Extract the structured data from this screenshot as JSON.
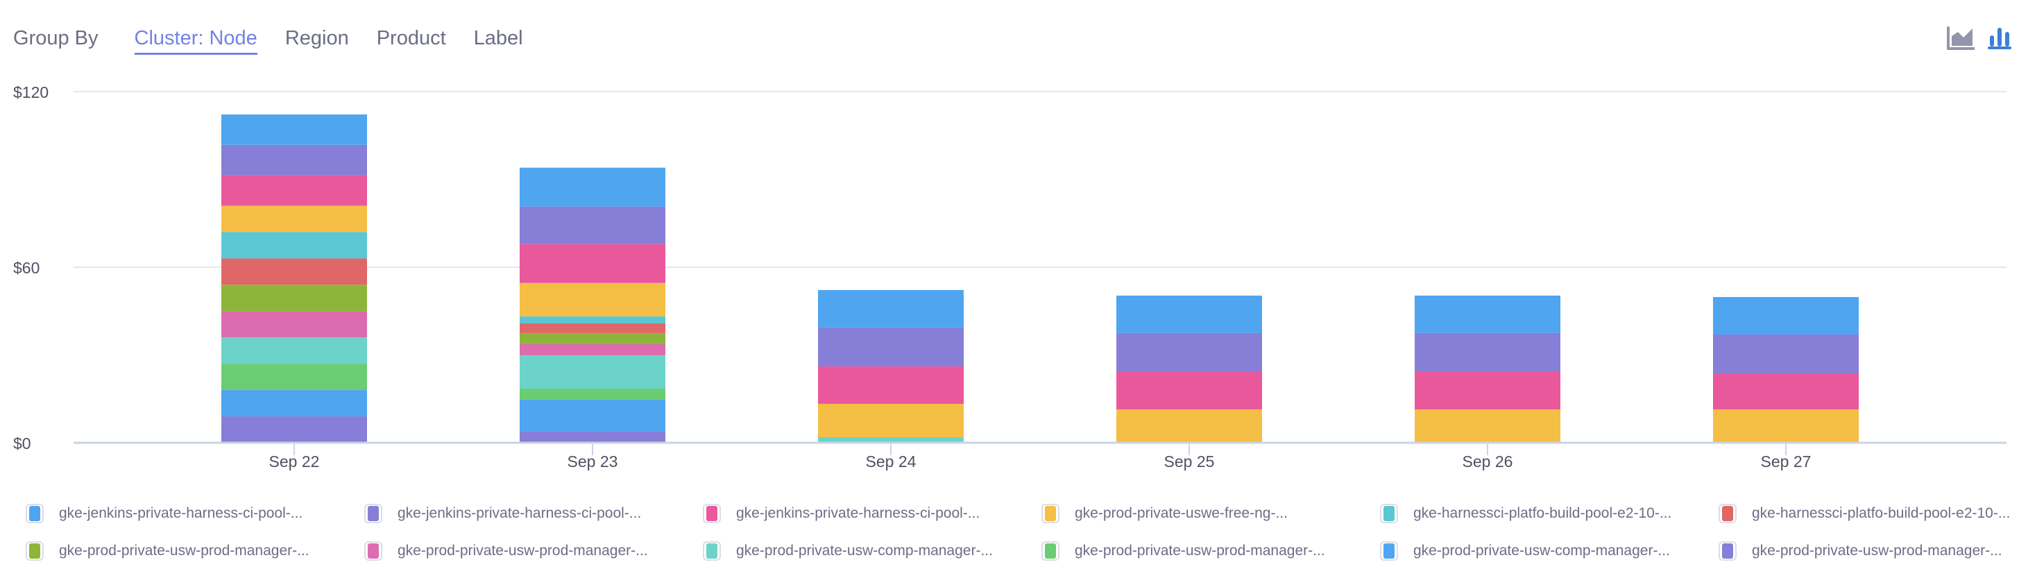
{
  "header": {
    "group_by_label": "Group By",
    "tabs": [
      {
        "label": "Cluster: Node",
        "active": true
      },
      {
        "label": "Region",
        "active": false
      },
      {
        "label": "Product",
        "active": false
      },
      {
        "label": "Label",
        "active": false
      }
    ],
    "view_icons": [
      {
        "name": "area-chart-icon",
        "active": false,
        "color": "#9395ab"
      },
      {
        "name": "bar-chart-icon",
        "active": true,
        "color": "#3b7fd6"
      }
    ]
  },
  "chart_data": {
    "type": "bar",
    "stacked": true,
    "categories": [
      "Sep 22",
      "Sep 23",
      "Sep 24",
      "Sep 25",
      "Sep 26",
      "Sep 27"
    ],
    "y_ticks": [
      "$0",
      "$60",
      "$120"
    ],
    "ylim": [
      0,
      120
    ],
    "grid": true,
    "legend_position": "bottom",
    "series": [
      {
        "name": "gke-jenkins-private-harness-ci-pool-...",
        "color": "#4fa5f0",
        "values": [
          10.4,
          13.3,
          12.8,
          12.8,
          12.8,
          12.8
        ]
      },
      {
        "name": "gke-jenkins-private-harness-ci-pool-...",
        "color": "#877ed7",
        "values": [
          10.4,
          12.8,
          13.3,
          13.3,
          13.3,
          13.3
        ]
      },
      {
        "name": "gke-jenkins-private-harness-ci-pool-...",
        "color": "#ea589c",
        "values": [
          10.4,
          13.3,
          12.8,
          12.8,
          12.8,
          12.3
        ]
      },
      {
        "name": "gke-prod-private-uswe-free-ng-...",
        "color": "#f5be45",
        "values": [
          9.0,
          11.4,
          11.4,
          11.4,
          11.4,
          11.4
        ]
      },
      {
        "name": "gke-harnessci-platfo-build-pool-e2-10-...",
        "color": "#5bc6d4",
        "values": [
          9.0,
          2.4,
          0,
          0,
          0,
          0
        ]
      },
      {
        "name": "gke-harnessci-platfo-build-pool-e2-10-...",
        "color": "#e06767",
        "values": [
          9.0,
          3.3,
          0,
          0,
          0,
          0
        ]
      },
      {
        "name": "gke-prod-private-usw-prod-manager-...",
        "color": "#8db53a",
        "values": [
          9.0,
          3.8,
          0,
          0,
          0,
          0
        ]
      },
      {
        "name": "gke-prod-private-usw-prod-manager-...",
        "color": "#dd6bb1",
        "values": [
          9.0,
          3.8,
          0,
          0,
          0,
          0
        ]
      },
      {
        "name": "gke-prod-private-usw-comp-manager-...",
        "color": "#6cd3ca",
        "values": [
          9.0,
          11.4,
          1.9,
          0,
          0,
          0
        ]
      },
      {
        "name": "gke-prod-private-usw-prod-manager-...",
        "color": "#6acd74",
        "values": [
          9.0,
          3.8,
          0,
          0,
          0,
          0
        ]
      },
      {
        "name": "gke-prod-private-usw-comp-manager-...",
        "color": "#4fa5f0",
        "values": [
          9.0,
          10.9,
          0,
          0,
          0,
          0
        ]
      },
      {
        "name": "gke-prod-private-usw-prod-manager-...",
        "color": "#877ed7",
        "values": [
          9.0,
          3.8,
          0,
          0,
          0,
          0
        ]
      }
    ]
  }
}
